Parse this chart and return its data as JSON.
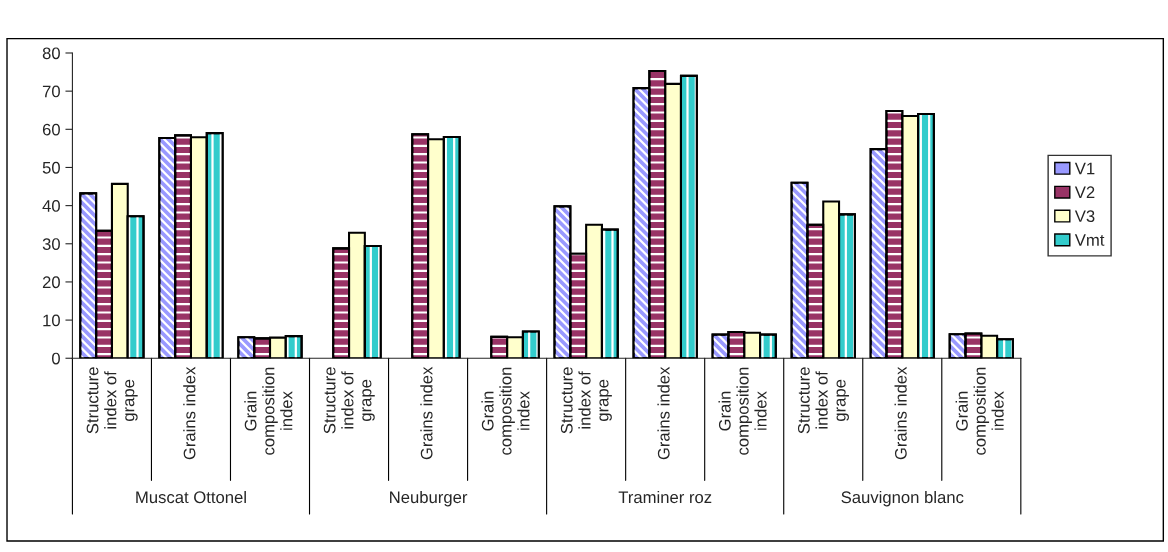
{
  "chart_data": {
    "type": "bar",
    "categories": [
      "Structure\nindex of\ngrape",
      "Grains index",
      "Grain\ncomposition\nindex",
      "Structure\nindex of\ngrape",
      "Grains index",
      "Grain\ncomposition\nindex",
      "Structure\nindex of\ngrape",
      "Grains index",
      "Grain\ncomposition\nindex",
      "Structure\nindex of\ngrape",
      "Grains index",
      "Grain\ncomposition\nindex"
    ],
    "annotations": [
      "Muscat Ottonel",
      "Neuburger",
      "Traminer roz",
      "Sauvignon blanc"
    ],
    "series": [
      {
        "name": "V1",
        "color": "#9999ff",
        "values": [
          43.2,
          57.7,
          5.5,
          null,
          null,
          null,
          39.8,
          70.8,
          6.2,
          46.0,
          54.8,
          6.3
        ]
      },
      {
        "name": "V2",
        "color": "#993366",
        "values": [
          33.4,
          58.4,
          5.2,
          28.8,
          58.7,
          5.6,
          27.4,
          75.3,
          6.9,
          35.0,
          64.8,
          6.5
        ]
      },
      {
        "name": "V3",
        "color": "#ffffcc",
        "values": [
          45.7,
          57.9,
          5.4,
          32.9,
          57.4,
          5.5,
          35.0,
          71.9,
          6.7,
          41.1,
          63.5,
          5.9
        ]
      },
      {
        "name": "Vmt",
        "color": "#33cccc",
        "values": [
          37.2,
          59.0,
          5.8,
          29.4,
          58.0,
          7.0,
          33.7,
          74.0,
          6.2,
          37.7,
          64.0,
          5.0
        ]
      }
    ],
    "ylim": [
      0,
      80
    ],
    "yticks": [
      0,
      10,
      20,
      30,
      40,
      50,
      60,
      70,
      80
    ],
    "grid": false,
    "legend": "right"
  }
}
